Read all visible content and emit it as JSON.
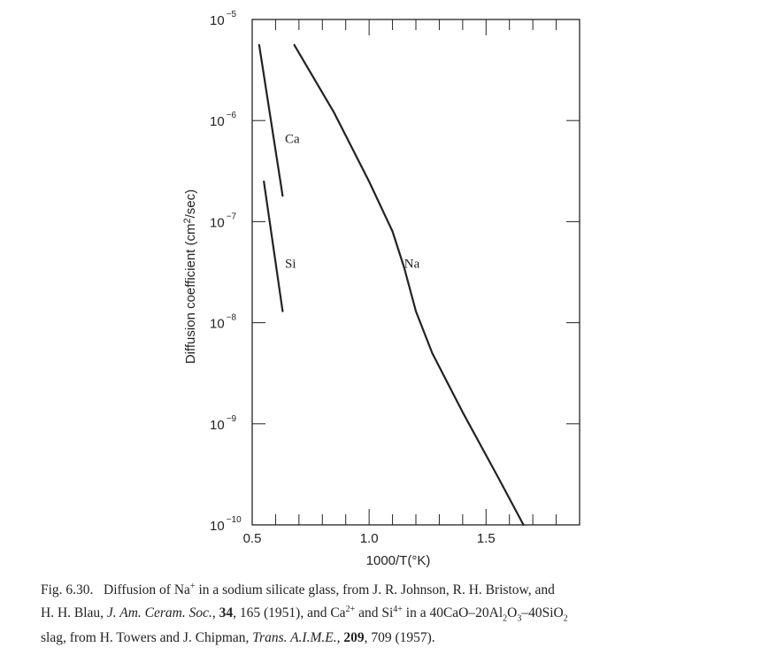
{
  "chart_data": {
    "type": "line",
    "xlabel": "1000/T(°K)",
    "ylabel": "Diffusion coefficient (cm²/sec)",
    "ylabel_parts": {
      "main": "Diffusion coefficient (cm",
      "sup": "2",
      "end": "/sec)"
    },
    "xlim": [
      0.5,
      1.9
    ],
    "ylim": [
      1e-10,
      1e-05
    ],
    "yscale": "log",
    "xticks": [
      {
        "value": 0.5,
        "label": "0.5"
      },
      {
        "value": 1.0,
        "label": "1.0"
      },
      {
        "value": 1.5,
        "label": "1.5"
      }
    ],
    "yticks": [
      {
        "value": 1e-05,
        "base": "10",
        "exp": "−5"
      },
      {
        "value": 1e-06,
        "base": "10",
        "exp": "−6"
      },
      {
        "value": 1e-07,
        "base": "10",
        "exp": "−7"
      },
      {
        "value": 1e-08,
        "base": "10",
        "exp": "−8"
      },
      {
        "value": 1e-09,
        "base": "10",
        "exp": "−9"
      },
      {
        "value": 1e-10,
        "base": "10",
        "exp": "−10"
      }
    ],
    "series": [
      {
        "name": "Ca",
        "x": [
          0.53,
          0.63
        ],
        "y": [
          5.6e-06,
          1.8e-07
        ]
      },
      {
        "name": "Si",
        "x": [
          0.55,
          0.63
        ],
        "y": [
          2.5e-07,
          1.3e-08
        ]
      },
      {
        "name": "Na",
        "x": [
          0.68,
          0.85,
          1.0,
          1.1,
          1.15,
          1.2,
          1.27,
          1.4,
          1.55,
          1.66
        ],
        "y": [
          5.6e-06,
          1.2e-06,
          2.5e-07,
          8e-08,
          3.5e-08,
          1.3e-08,
          5e-09,
          1.3e-09,
          3e-10,
          1e-10
        ]
      }
    ],
    "series_labels": [
      {
        "text": "Ca",
        "x": 0.64,
        "y": 6e-07
      },
      {
        "text": "Si",
        "x": 0.64,
        "y": 3.5e-08
      },
      {
        "text": "Na",
        "x": 1.15,
        "y": 3.5e-08
      }
    ]
  },
  "caption": {
    "lines": [
      [
        {
          "t": "Fig. 6.30.   Diffusion of Na"
        },
        {
          "t": "+",
          "sup": true
        },
        {
          "t": " in a sodium silicate glass, from J. R. Johnson, R. H. Bristow, and"
        }
      ],
      [
        {
          "t": "H. H. Blau, "
        },
        {
          "t": "J. Am. Ceram. Soc.",
          "i": true
        },
        {
          "t": ", "
        },
        {
          "t": "34",
          "b": true
        },
        {
          "t": ", 165 (1951), and Ca"
        },
        {
          "t": "2+",
          "sup": true
        },
        {
          "t": " and Si"
        },
        {
          "t": "4+",
          "sup": true
        },
        {
          "t": " in a 40CaO–20Al"
        },
        {
          "t": "2",
          "sub": true
        },
        {
          "t": "O"
        },
        {
          "t": "3",
          "sub": true
        },
        {
          "t": "–40SiO"
        },
        {
          "t": "2",
          "sub": true
        }
      ],
      [
        {
          "t": "slag, from H. Towers and J. Chipman, "
        },
        {
          "t": "Trans. A.I.M.E.",
          "i": true
        },
        {
          "t": ", "
        },
        {
          "t": "209",
          "b": true
        },
        {
          "t": ", 709 (1957)."
        }
      ]
    ]
  }
}
